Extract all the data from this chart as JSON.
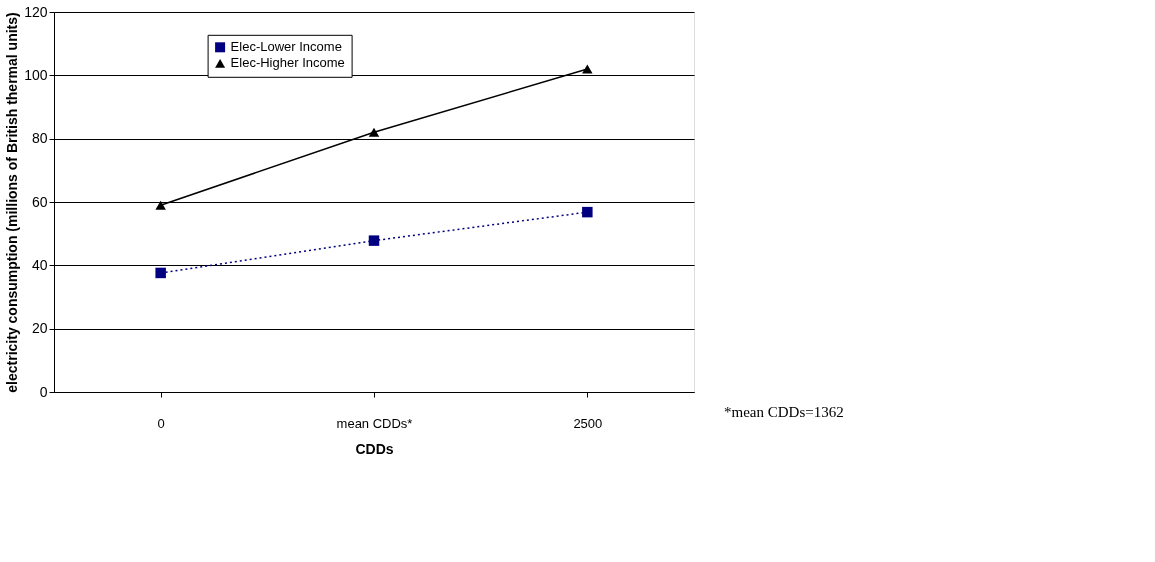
{
  "chart_data": {
    "type": "line",
    "xlabel": "CDDs",
    "ylabel": "electricity consumption (millions of British thermal units)",
    "categories": [
      "0",
      "mean CDDs*",
      "2500"
    ],
    "series": [
      {
        "name": "Elec-Lower Income",
        "color": "#000080",
        "marker": "square",
        "line_style": "dotted",
        "values": [
          37.6,
          47.8,
          56.8
        ]
      },
      {
        "name": "Elec-Higher Income",
        "color": "#000000",
        "marker": "triangle",
        "line_style": "solid",
        "values": [
          59,
          82,
          102
        ]
      }
    ],
    "ylim": [
      0,
      120
    ],
    "yticks": [
      0,
      20,
      40,
      60,
      80,
      100,
      120
    ],
    "grid": "y",
    "legend": "top left",
    "annotations": [
      "*mean CDDs=1362"
    ]
  }
}
